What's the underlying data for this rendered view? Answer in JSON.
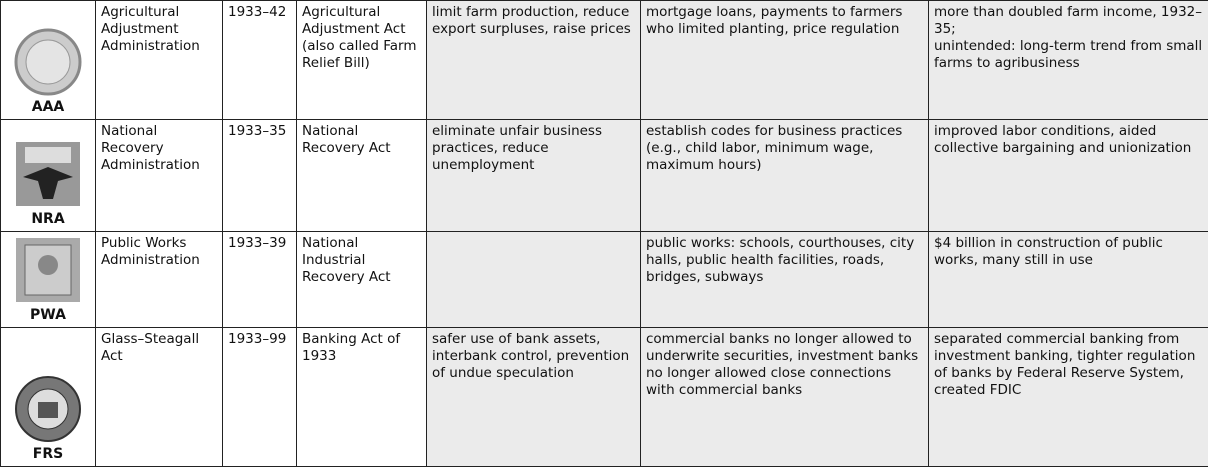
{
  "table": {
    "rows": [
      {
        "acronym": "AAA",
        "cells": [
          "Agricultural Adjustment Administration",
          "1933–42",
          "Agricultural Adjustment Act (also called Farm Relief Bill)",
          "limit farm production, reduce export surpluses, raise prices",
          "mortgage loans, payments to farmers who limited planting, price regulation",
          "more than doubled farm income, 1932–35;\nunintended: long-term trend from small farms to agribusiness"
        ]
      },
      {
        "acronym": "NRA",
        "cells": [
          "National Recovery Administration",
          "1933–35",
          "National Recovery Act",
          "eliminate unfair business practices, reduce unemployment",
          "establish codes for business practices (e.g., child labor, minimum wage, maximum hours)",
          "improved labor conditions, aided collective bargaining and unionization"
        ]
      },
      {
        "acronym": "PWA",
        "cells": [
          "Public Works Administration",
          "1933–39",
          "National Industrial Recovery Act",
          "",
          "public works: schools, courthouses, city halls, public health facilities, roads, bridges, subways",
          "$4 billion in construction of public works, many still in use"
        ]
      },
      {
        "acronym": "FRS",
        "cells": [
          "Glass–Steagall Act",
          "1933–99",
          "Banking Act of 1933",
          "safer use of bank assets, interbank control, prevention of undue speculation",
          "commercial banks no longer allowed to underwrite securities, investment banks no longer allowed close connections with commercial banks",
          "separated commercial banking from investment banking, tighter regulation of banks by Federal Reserve System, created FDIC"
        ]
      }
    ]
  }
}
